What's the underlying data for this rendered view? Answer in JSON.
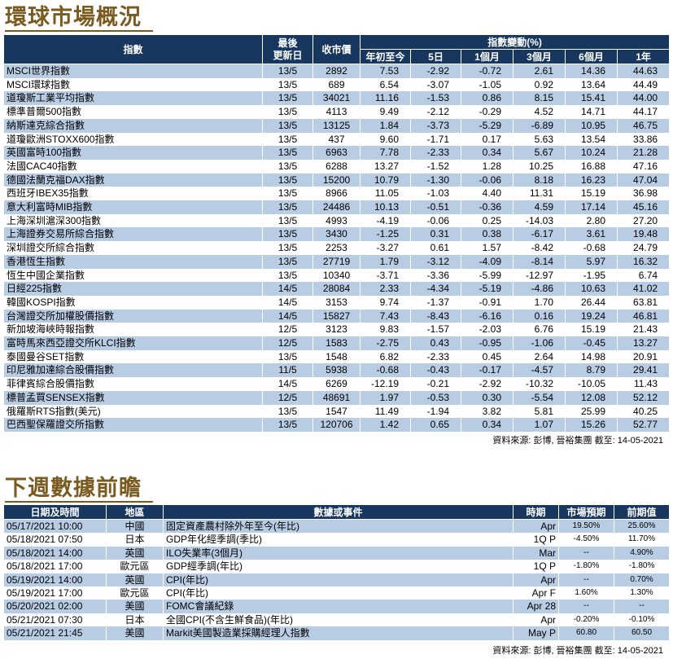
{
  "market": {
    "title": "環球市場概況",
    "headers": {
      "index": "指數",
      "updated": "最後\n更新日",
      "close": "收市價",
      "change_group": "指數變動(%)",
      "ytd": "年初至今",
      "d5": "5日",
      "m1": "1個月",
      "m3": "3個月",
      "m6": "6個月",
      "y1": "1年"
    },
    "rows": [
      [
        "MSCI世界指數",
        "13/5",
        "2892",
        "7.53",
        "-2.92",
        "-0.72",
        "2.61",
        "14.36",
        "44.63"
      ],
      [
        "MSCI環球指數",
        "13/5",
        "689",
        "6.54",
        "-3.07",
        "-1.05",
        "0.92",
        "13.64",
        "44.49"
      ],
      [
        "道瓊斯工業平均指數",
        "13/5",
        "34021",
        "11.16",
        "-1.53",
        "0.86",
        "8.15",
        "15.41",
        "44.00"
      ],
      [
        "標準普爾500指數",
        "13/5",
        "4113",
        "9.49",
        "-2.12",
        "-0.29",
        "4.52",
        "14.71",
        "44.17"
      ],
      [
        "納斯達克綜合指數",
        "13/5",
        "13125",
        "1.84",
        "-3.73",
        "-5.29",
        "-6.89",
        "10.95",
        "46.75"
      ],
      [
        "道瓊歐洲STOXX600指數",
        "13/5",
        "437",
        "9.60",
        "-1.71",
        "0.17",
        "5.63",
        "13.54",
        "33.86"
      ],
      [
        "英國富時100指數",
        "13/5",
        "6963",
        "7.78",
        "-2.33",
        "0.34",
        "5.67",
        "10.24",
        "21.28"
      ],
      [
        "法國CAC40指數",
        "13/5",
        "6288",
        "13.27",
        "-1.52",
        "1.28",
        "10.25",
        "16.88",
        "47.16"
      ],
      [
        "德國法蘭克福DAX指數",
        "13/5",
        "15200",
        "10.79",
        "-1.30",
        "-0.06",
        "8.18",
        "16.23",
        "47.04"
      ],
      [
        "西班牙IBEX35指數",
        "13/5",
        "8966",
        "11.05",
        "-1.03",
        "4.40",
        "11.31",
        "15.19",
        "36.98"
      ],
      [
        "意大利富時MIB指數",
        "13/5",
        "24486",
        "10.13",
        "-0.51",
        "-0.36",
        "4.59",
        "17.14",
        "45.16"
      ],
      [
        "上海深圳滬深300指數",
        "13/5",
        "4993",
        "-4.19",
        "-0.06",
        "0.25",
        "-14.03",
        "2.80",
        "27.20"
      ],
      [
        "上海證券交易所綜合指數",
        "13/5",
        "3430",
        "-1.25",
        "0.31",
        "0.38",
        "-6.17",
        "3.61",
        "19.48"
      ],
      [
        "深圳證交所綜合指數",
        "13/5",
        "2253",
        "-3.27",
        "0.61",
        "1.57",
        "-8.42",
        "-0.68",
        "24.79"
      ],
      [
        "香港恆生指數",
        "13/5",
        "27719",
        "1.79",
        "-3.12",
        "-4.09",
        "-8.14",
        "5.97",
        "16.32"
      ],
      [
        "恆生中國企業指數",
        "13/5",
        "10340",
        "-3.71",
        "-3.36",
        "-5.99",
        "-12.97",
        "-1.95",
        "6.74"
      ],
      [
        "日經225指數",
        "14/5",
        "28084",
        "2.33",
        "-4.34",
        "-5.19",
        "-4.86",
        "10.63",
        "41.02"
      ],
      [
        "韓國KOSPI指數",
        "14/5",
        "3153",
        "9.74",
        "-1.37",
        "-0.91",
        "1.70",
        "26.44",
        "63.81"
      ],
      [
        "台灣證交所加權股價指數",
        "14/5",
        "15827",
        "7.43",
        "-8.43",
        "-6.16",
        "0.16",
        "19.24",
        "46.81"
      ],
      [
        "新加坡海峽時報指數",
        "12/5",
        "3123",
        "9.83",
        "-1.57",
        "-2.03",
        "6.76",
        "15.19",
        "21.43"
      ],
      [
        "富時馬來西亞證交所KLCI指數",
        "12/5",
        "1583",
        "-2.75",
        "0.43",
        "-0.95",
        "-1.06",
        "-0.45",
        "13.27"
      ],
      [
        "泰國曼谷SET指數",
        "13/5",
        "1548",
        "6.82",
        "-2.33",
        "0.45",
        "2.64",
        "14.98",
        "20.91"
      ],
      [
        "印尼雅加達綜合股價指數",
        "11/5",
        "5938",
        "-0.68",
        "-0.43",
        "-0.17",
        "-4.57",
        "8.79",
        "29.41"
      ],
      [
        "菲律賓綜合股價指數",
        "14/5",
        "6269",
        "-12.19",
        "-0.21",
        "-2.92",
        "-10.32",
        "-10.05",
        "11.43"
      ],
      [
        "標普孟買SENSEX指數",
        "12/5",
        "48691",
        "1.97",
        "-0.53",
        "0.30",
        "-5.54",
        "12.08",
        "52.12"
      ],
      [
        "俄羅斯RTS指數(美元)",
        "13/5",
        "1547",
        "11.49",
        "-1.94",
        "3.82",
        "5.81",
        "25.99",
        "40.25"
      ],
      [
        "巴西聖保羅證交所指數",
        "13/5",
        "120706",
        "1.42",
        "0.65",
        "0.34",
        "1.07",
        "15.26",
        "52.77"
      ]
    ],
    "source": "資料來源: 彭博, 晉裕集團 截至: 14-05-2021"
  },
  "calendar": {
    "title": "下週數據前瞻",
    "headers": {
      "datetime": "日期及時間",
      "region": "地區",
      "event": "數據或事件",
      "period": "時期",
      "forecast": "市場預期",
      "previous": "前期值"
    },
    "rows": [
      [
        "05/17/2021 10:00",
        "中國",
        "固定資產農村除外年至今(年比)",
        "Apr",
        "19.50%",
        "25.60%"
      ],
      [
        "05/18/2021 07:50",
        "日本",
        "GDP年化經季調(季比)",
        "1Q P",
        "-4.50%",
        "11.70%"
      ],
      [
        "05/18/2021 14:00",
        "英國",
        "ILO失業率(3個月)",
        "Mar",
        "--",
        "4.90%"
      ],
      [
        "05/18/2021 17:00",
        "歐元區",
        "GDP經季調(年比)",
        "1Q P",
        "-1.80%",
        "-1.80%"
      ],
      [
        "05/19/2021 14:00",
        "英國",
        "CPI(年比)",
        "Apr",
        "--",
        "0.70%"
      ],
      [
        "05/19/2021 17:00",
        "歐元區",
        "CPI(年比)",
        "Apr F",
        "1.60%",
        "1.30%"
      ],
      [
        "05/20/2021 02:00",
        "美國",
        "FOMC會議紀錄",
        "Apr 28",
        "--",
        "--"
      ],
      [
        "05/21/2021 07:30",
        "日本",
        "全國CPI(不含生鮮食品)(年比)",
        "Apr",
        "-0.20%",
        "-0.10%"
      ],
      [
        "05/21/2021 21:45",
        "美國",
        "Markit美國製造業採購經理人指數",
        "May P",
        "60.80",
        "60.50"
      ]
    ],
    "source": "資料來源: 彭博, 晉裕集團 截至: 14-05-2021"
  }
}
